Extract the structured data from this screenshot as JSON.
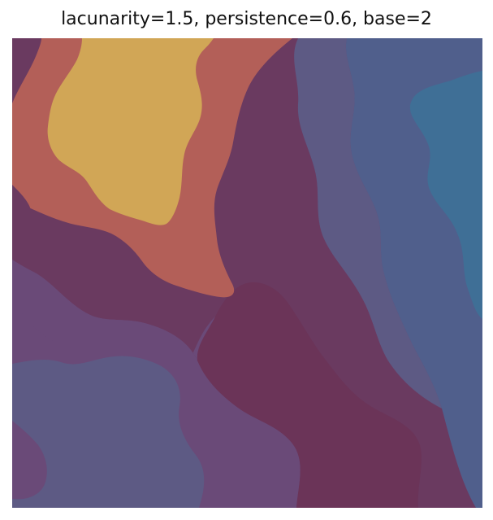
{
  "title": "lacunarity=1.5, persistence=0.6, base=2",
  "colors": {
    "deep_plum": "#6b3458",
    "plum": "#6a3a60",
    "muted_purple": "#6a4a78",
    "slate_violet": "#5d5a84",
    "indigo_slate": "#505f8c",
    "teal_blue": "#3f6f96",
    "terracotta": "#b35f58",
    "ochre": "#d1a656"
  }
}
